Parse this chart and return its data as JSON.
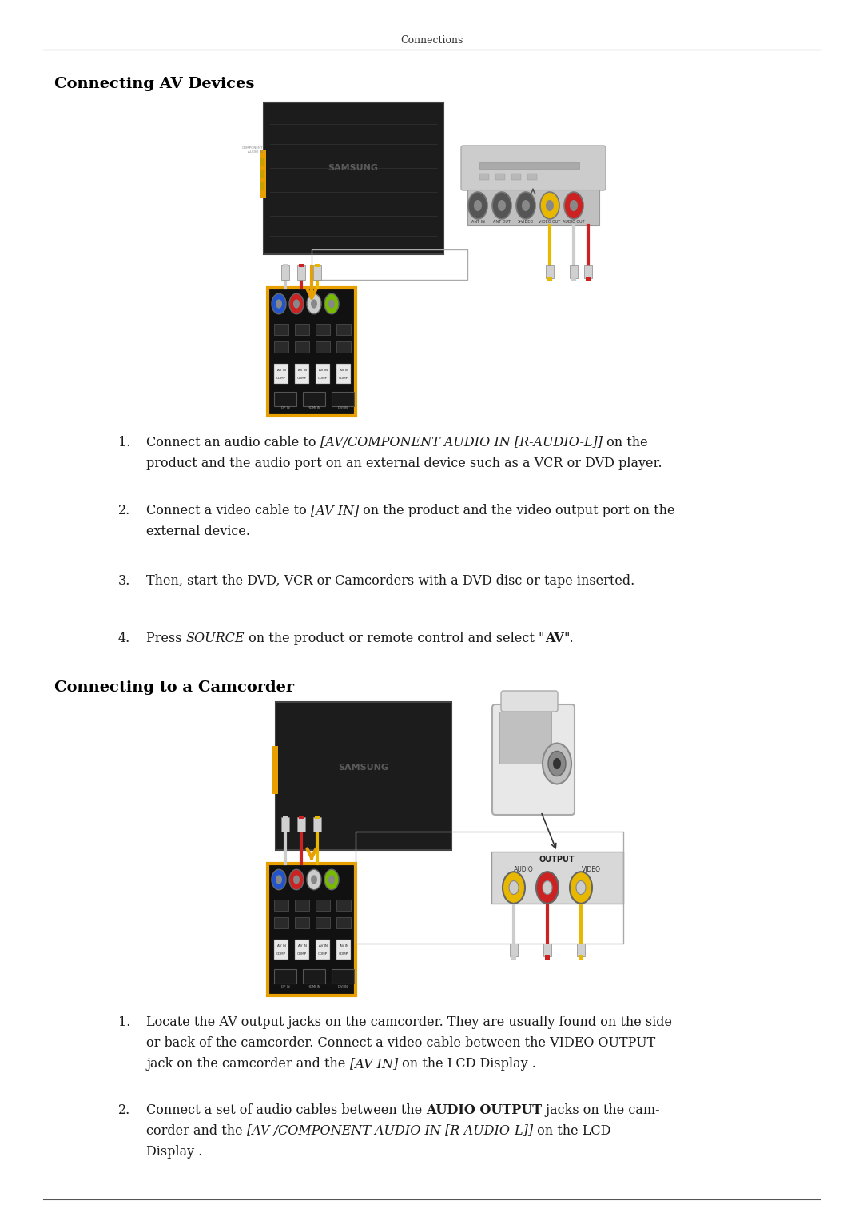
{
  "page_title": "Connections",
  "bg_color": "#ffffff",
  "text_color": "#1a1a1a",
  "title_color": "#000000",
  "header_line_color": "#555555",
  "footer_line_color": "#555555",
  "section1_title": "Connecting AV Devices",
  "section2_title": "Connecting to a Camcorder",
  "item1_pre": "Connect an audio cable to ",
  "item1_italic": "[AV/COMPONENT AUDIO IN [R-AUDIO-L]]",
  "item1_post": " on the",
  "item1_line2": "product and the audio port on an external device such as a VCR or DVD player.",
  "item2_pre": "Connect a video cable to ",
  "item2_italic": "[AV IN]",
  "item2_post": " on the product and the video output port on the",
  "item2_line2": "external device.",
  "item3": "Then, start the DVD, VCR or Camcorders with a DVD disc or tape inserted.",
  "item4_pre": "Press ",
  "item4_italic": "SOURCE",
  "item4_mid": " on the product or remote control and select \"",
  "item4_bold": "AV",
  "item4_post": "\".",
  "cam_item1_line1": "Locate the AV output jacks on the camcorder. They are usually found on the side",
  "cam_item1_line2": "or back of the camcorder. Connect a video cable between the VIDEO OUTPUT",
  "cam_item1_pre3": "jack on the camcorder and the ",
  "cam_item1_italic3": "[AV IN]",
  "cam_item1_post3": " on the LCD Display .",
  "cam_item2_pre1": "Connect a set of audio cables between the ",
  "cam_item2_bold1": "AUDIO OUTPUT",
  "cam_item2_post1": " jacks on the cam-",
  "cam_item2_pre2": "corder and the ",
  "cam_item2_italic2": "[AV /COMPONENT AUDIO IN [R-AUDIO-L]]",
  "cam_item2_post2": " on the LCD",
  "cam_item2_line3": "Display ."
}
